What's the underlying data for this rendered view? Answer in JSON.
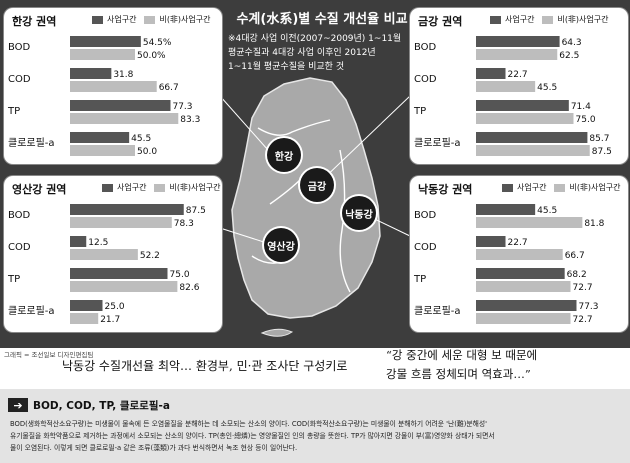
{
  "title": "수계(水系)별 수질 개선율 비교",
  "note_lines": [
    "※4대강 사업 이전(2007~2009년) 1~11월",
    "평균수질과 4대강 사업 이후인 2012년",
    "1~11월 평균수질을 비교한 것"
  ],
  "legend": {
    "series1": "사업구간",
    "series2": "비(非)사업구간"
  },
  "map_labels": {
    "han": "한강",
    "geum": "금강",
    "nakdong": "낙동강",
    "yeongsan": "영산강"
  },
  "chart_data": [
    {
      "type": "bar",
      "title": "한강 권역",
      "categories": [
        "BOD",
        "COD",
        "TP",
        "클로로필-a"
      ],
      "series": [
        {
          "name": "사업구간",
          "values": [
            54.5,
            31.8,
            77.3,
            45.5
          ],
          "labels": [
            "54.5%",
            "31.8",
            "77.3",
            "45.5"
          ],
          "color": "#555555"
        },
        {
          "name": "비(非)사업구간",
          "values": [
            50.0,
            66.7,
            83.3,
            50.0
          ],
          "labels": [
            "50.0%",
            "66.7",
            "83.3",
            "50.0"
          ],
          "color": "#bdbdbd"
        }
      ],
      "xlim": [
        0,
        100
      ],
      "orientation": "horizontal"
    },
    {
      "type": "bar",
      "title": "금강 권역",
      "categories": [
        "BOD",
        "COD",
        "TP",
        "클로로필-a"
      ],
      "series": [
        {
          "name": "사업구간",
          "values": [
            64.3,
            22.7,
            71.4,
            85.7
          ],
          "labels": [
            "64.3",
            "22.7",
            "71.4",
            "85.7"
          ],
          "color": "#555555"
        },
        {
          "name": "비(非)사업구간",
          "values": [
            62.5,
            45.5,
            75.0,
            87.5
          ],
          "labels": [
            "62.5",
            "45.5",
            "75.0",
            "87.5"
          ],
          "color": "#bdbdbd"
        }
      ],
      "xlim": [
        0,
        100
      ],
      "orientation": "horizontal"
    },
    {
      "type": "bar",
      "title": "영산강 권역",
      "categories": [
        "BOD",
        "COD",
        "TP",
        "클로로필-a"
      ],
      "series": [
        {
          "name": "사업구간",
          "values": [
            87.5,
            12.5,
            75.0,
            25.0
          ],
          "labels": [
            "87.5",
            "12.5",
            "75.0",
            "25.0"
          ],
          "color": "#555555"
        },
        {
          "name": "비(非)사업구간",
          "values": [
            78.3,
            52.2,
            82.6,
            21.7
          ],
          "labels": [
            "78.3",
            "52.2",
            "82.6",
            "21.7"
          ],
          "color": "#bdbdbd"
        }
      ],
      "xlim": [
        0,
        100
      ],
      "orientation": "horizontal"
    },
    {
      "type": "bar",
      "title": "낙동강 권역",
      "categories": [
        "BOD",
        "COD",
        "TP",
        "클로로필-a"
      ],
      "series": [
        {
          "name": "사업구간",
          "values": [
            45.5,
            22.7,
            68.2,
            77.3
          ],
          "labels": [
            "45.5",
            "22.7",
            "68.2",
            "77.3"
          ],
          "color": "#555555"
        },
        {
          "name": "비(非)사업구간",
          "values": [
            81.8,
            66.7,
            72.7,
            72.7
          ],
          "labels": [
            "81.8",
            "66.7",
            "72.7",
            "72.7"
          ],
          "color": "#bdbdbd"
        }
      ],
      "xlim": [
        0,
        100
      ],
      "orientation": "horizontal"
    }
  ],
  "credit": "그래픽 = 조선일보 디자인편집팀",
  "caption_left": "낙동강 수질개선율 최악… 환경부, 민·관 조사단 구성키로",
  "caption_right": [
    "“강 중간에 세운 대형 보 때문에",
    "강물 흐름 정체되며 역효과…”"
  ],
  "glossary": {
    "title": "BOD, COD, TP, 클로로필-a",
    "lines": [
      "BOD(생화학적산소요구량)는 미생물이 물속에 든 오염물질을 분해하는 데 소모되는 산소의 양이다. COD(화학적산소요구량)는 미생물이 분해하기 어려운 '난(難)분해성'",
      "유기물질을 화학약품으로 제거하는 과정에서 소모되는 산소의 양이다. TP(총인·總燐)는 영양물질인 인의 총량을 뜻한다. TP가 많아지면 강물이 부(富)영양화 상태가 되면서",
      "물이 오염된다. 이렇게 되면 클로로필-a 같은 조류(藻類)가 과다 번식하면서 녹조 현상 등이 일어난다."
    ]
  }
}
